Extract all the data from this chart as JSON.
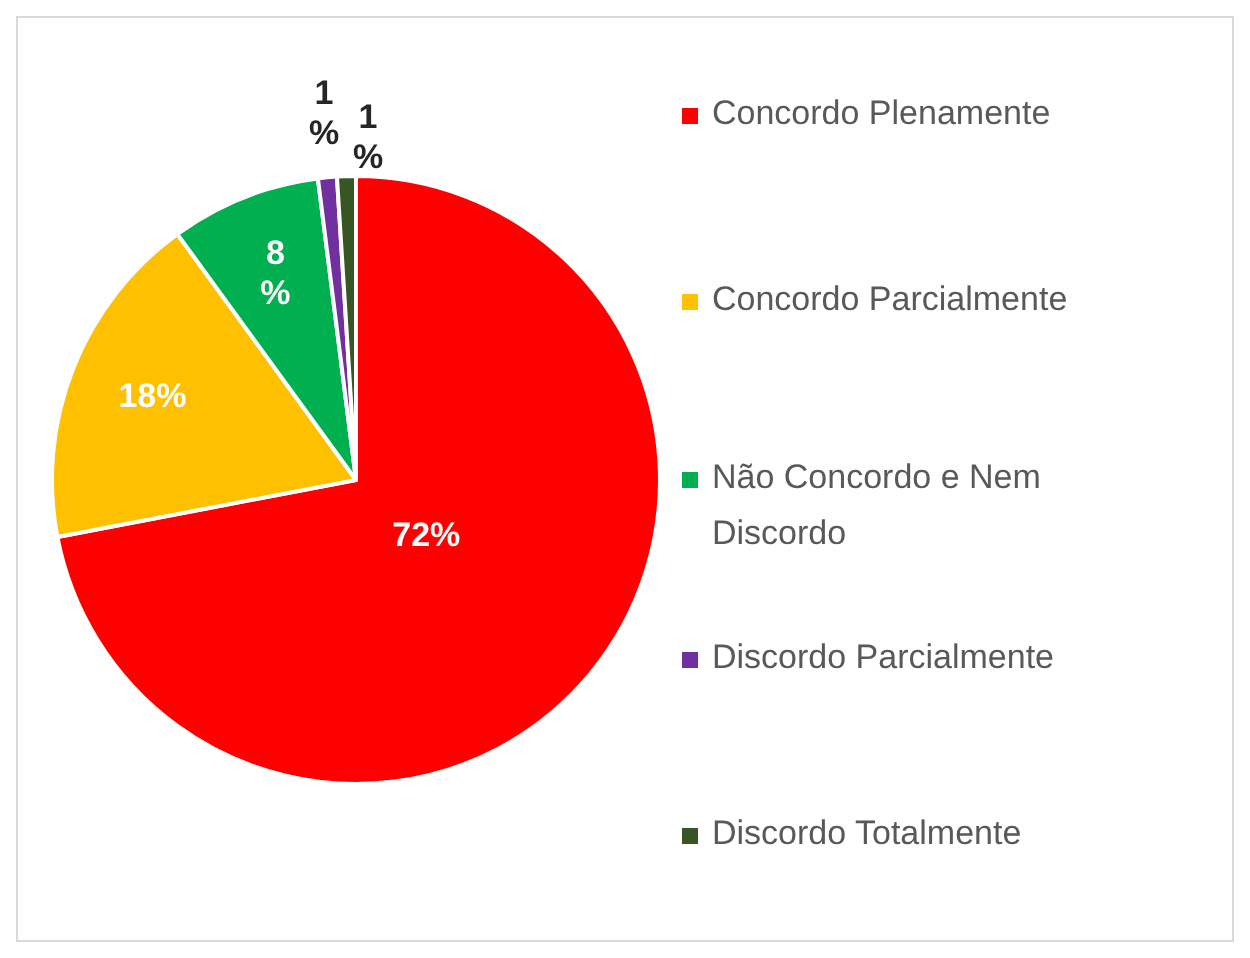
{
  "chart_data": {
    "type": "pie",
    "categories": [
      "Concordo Plenamente",
      "Concordo Parcialmente",
      "Não Concordo e Nem Discordo",
      "Discordo Parcialmente",
      "Discordo Totalmente"
    ],
    "values": [
      72,
      18,
      8,
      1,
      1
    ],
    "colors": [
      "#ff0000",
      "#ffc000",
      "#00b050",
      "#7030a0",
      "#375623"
    ],
    "value_labels": [
      "72%",
      "18%",
      "8 %",
      "1 %",
      "1 %"
    ],
    "legend": "right"
  }
}
